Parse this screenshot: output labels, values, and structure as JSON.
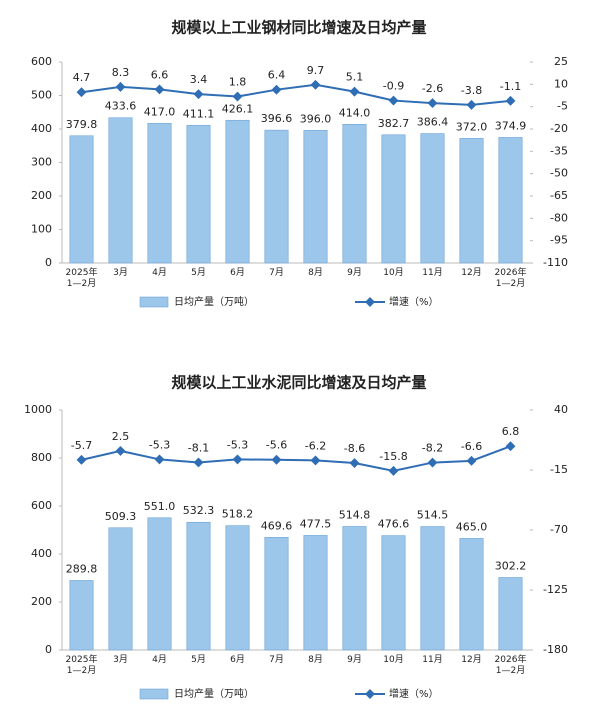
{
  "chart_data": [
    {
      "type": "combo",
      "title": "规模以上工业钢材同比增速及日均产量",
      "categories": [
        "2025年\n1—2月",
        "3月",
        "4月",
        "5月",
        "6月",
        "7月",
        "8月",
        "9月",
        "10月",
        "11月",
        "12月",
        "2026年\n1—2月"
      ],
      "series": [
        {
          "name": "日均产量（万吨）",
          "type": "bar",
          "color": "#9cc6ea",
          "values": [
            379.8,
            433.6,
            417.0,
            411.1,
            426.1,
            396.6,
            396.0,
            414.0,
            382.7,
            386.4,
            372.0,
            374.9
          ],
          "value_labels": [
            "379.8",
            "433.6",
            "417.0",
            "411.1",
            "426.1",
            "396.6",
            "396.0",
            "414.0",
            "382.7",
            "386.4",
            "372.0",
            "374.9"
          ]
        },
        {
          "name": "增速（%）",
          "type": "line",
          "axis": "y2",
          "color": "#2f6db5",
          "values": [
            4.7,
            8.3,
            6.6,
            3.4,
            1.8,
            6.4,
            9.7,
            5.1,
            -0.9,
            -2.6,
            -3.8,
            -1.1
          ]
        }
      ],
      "ylim": [
        0,
        600
      ],
      "yticks": [
        0,
        100,
        200,
        300,
        400,
        500,
        600
      ],
      "y2lim": [
        -110,
        25
      ],
      "y2ticks": [
        25,
        10,
        -5,
        -20,
        -35,
        -50,
        -65,
        -80,
        -95,
        -110
      ],
      "legend": "bottom",
      "grid": false
    },
    {
      "type": "combo",
      "title": "规模以上工业水泥同比增速及日均产量",
      "categories": [
        "2025年\n1—2月",
        "3月",
        "4月",
        "5月",
        "6月",
        "7月",
        "8月",
        "9月",
        "10月",
        "11月",
        "12月",
        "2026年\n1—2月"
      ],
      "series": [
        {
          "name": "日均产量（万吨）",
          "type": "bar",
          "color": "#9cc6ea",
          "values": [
            289.8,
            509.3,
            551.0,
            532.3,
            518.2,
            469.6,
            477.5,
            514.8,
            476.6,
            514.5,
            465.0,
            302.2
          ],
          "value_labels": [
            "289.8",
            "509.3",
            "551.0",
            "532.3",
            "518.2",
            "469.6",
            "477.5",
            "514.8",
            "476.6",
            "514.5",
            "465.0",
            "302.2"
          ]
        },
        {
          "name": "增速（%）",
          "type": "line",
          "axis": "y2",
          "color": "#2f6db5",
          "values": [
            -5.7,
            2.5,
            -5.3,
            -8.1,
            -5.3,
            -5.6,
            -6.2,
            -8.6,
            -15.8,
            -8.2,
            -6.6,
            6.8
          ]
        }
      ],
      "ylim": [
        0,
        1000
      ],
      "yticks": [
        0,
        200,
        400,
        600,
        800,
        1000
      ],
      "y2lim": [
        -180,
        40
      ],
      "y2ticks": [
        40,
        -15,
        -70,
        -125,
        -180
      ],
      "legend": "bottom",
      "grid": false
    }
  ]
}
